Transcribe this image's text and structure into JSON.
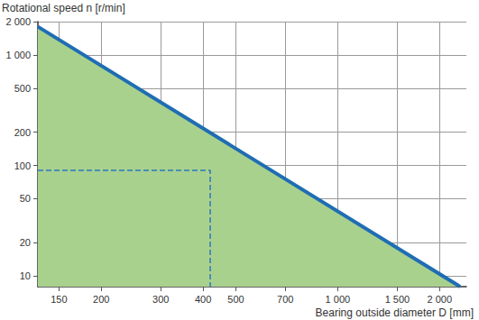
{
  "chart_data": {
    "type": "line",
    "y_label": "Rotational speed n [r/min]",
    "x_label": "Bearing outside diameter D [mm]",
    "log": true,
    "grid": true,
    "xlim": [
      130,
      2400
    ],
    "ylim": [
      8,
      2000
    ],
    "xticks": [
      150,
      200,
      300,
      400,
      500,
      700,
      {
        "value": 1000,
        "label": "1 000"
      },
      {
        "value": 1500,
        "label": "1 500"
      },
      {
        "value": 2000,
        "label": "2 000"
      }
    ],
    "yticks": [
      10,
      20,
      50,
      100,
      200,
      500,
      {
        "value": 1000,
        "label": "1 000"
      },
      {
        "value": 2000,
        "label": "2 000"
      }
    ],
    "series": [
      {
        "type": "area",
        "color": "#1f6db3",
        "line_style": "solid",
        "marker": "none",
        "x": [
          130,
          2300
        ],
        "values": [
          1800,
          8
        ]
      },
      {
        "type": "line",
        "color": "#2a78c0",
        "line_style": "dashed",
        "marker": "none",
        "x": [
          130,
          420,
          420
        ],
        "values": [
          90,
          90,
          8
        ]
      }
    ]
  }
}
